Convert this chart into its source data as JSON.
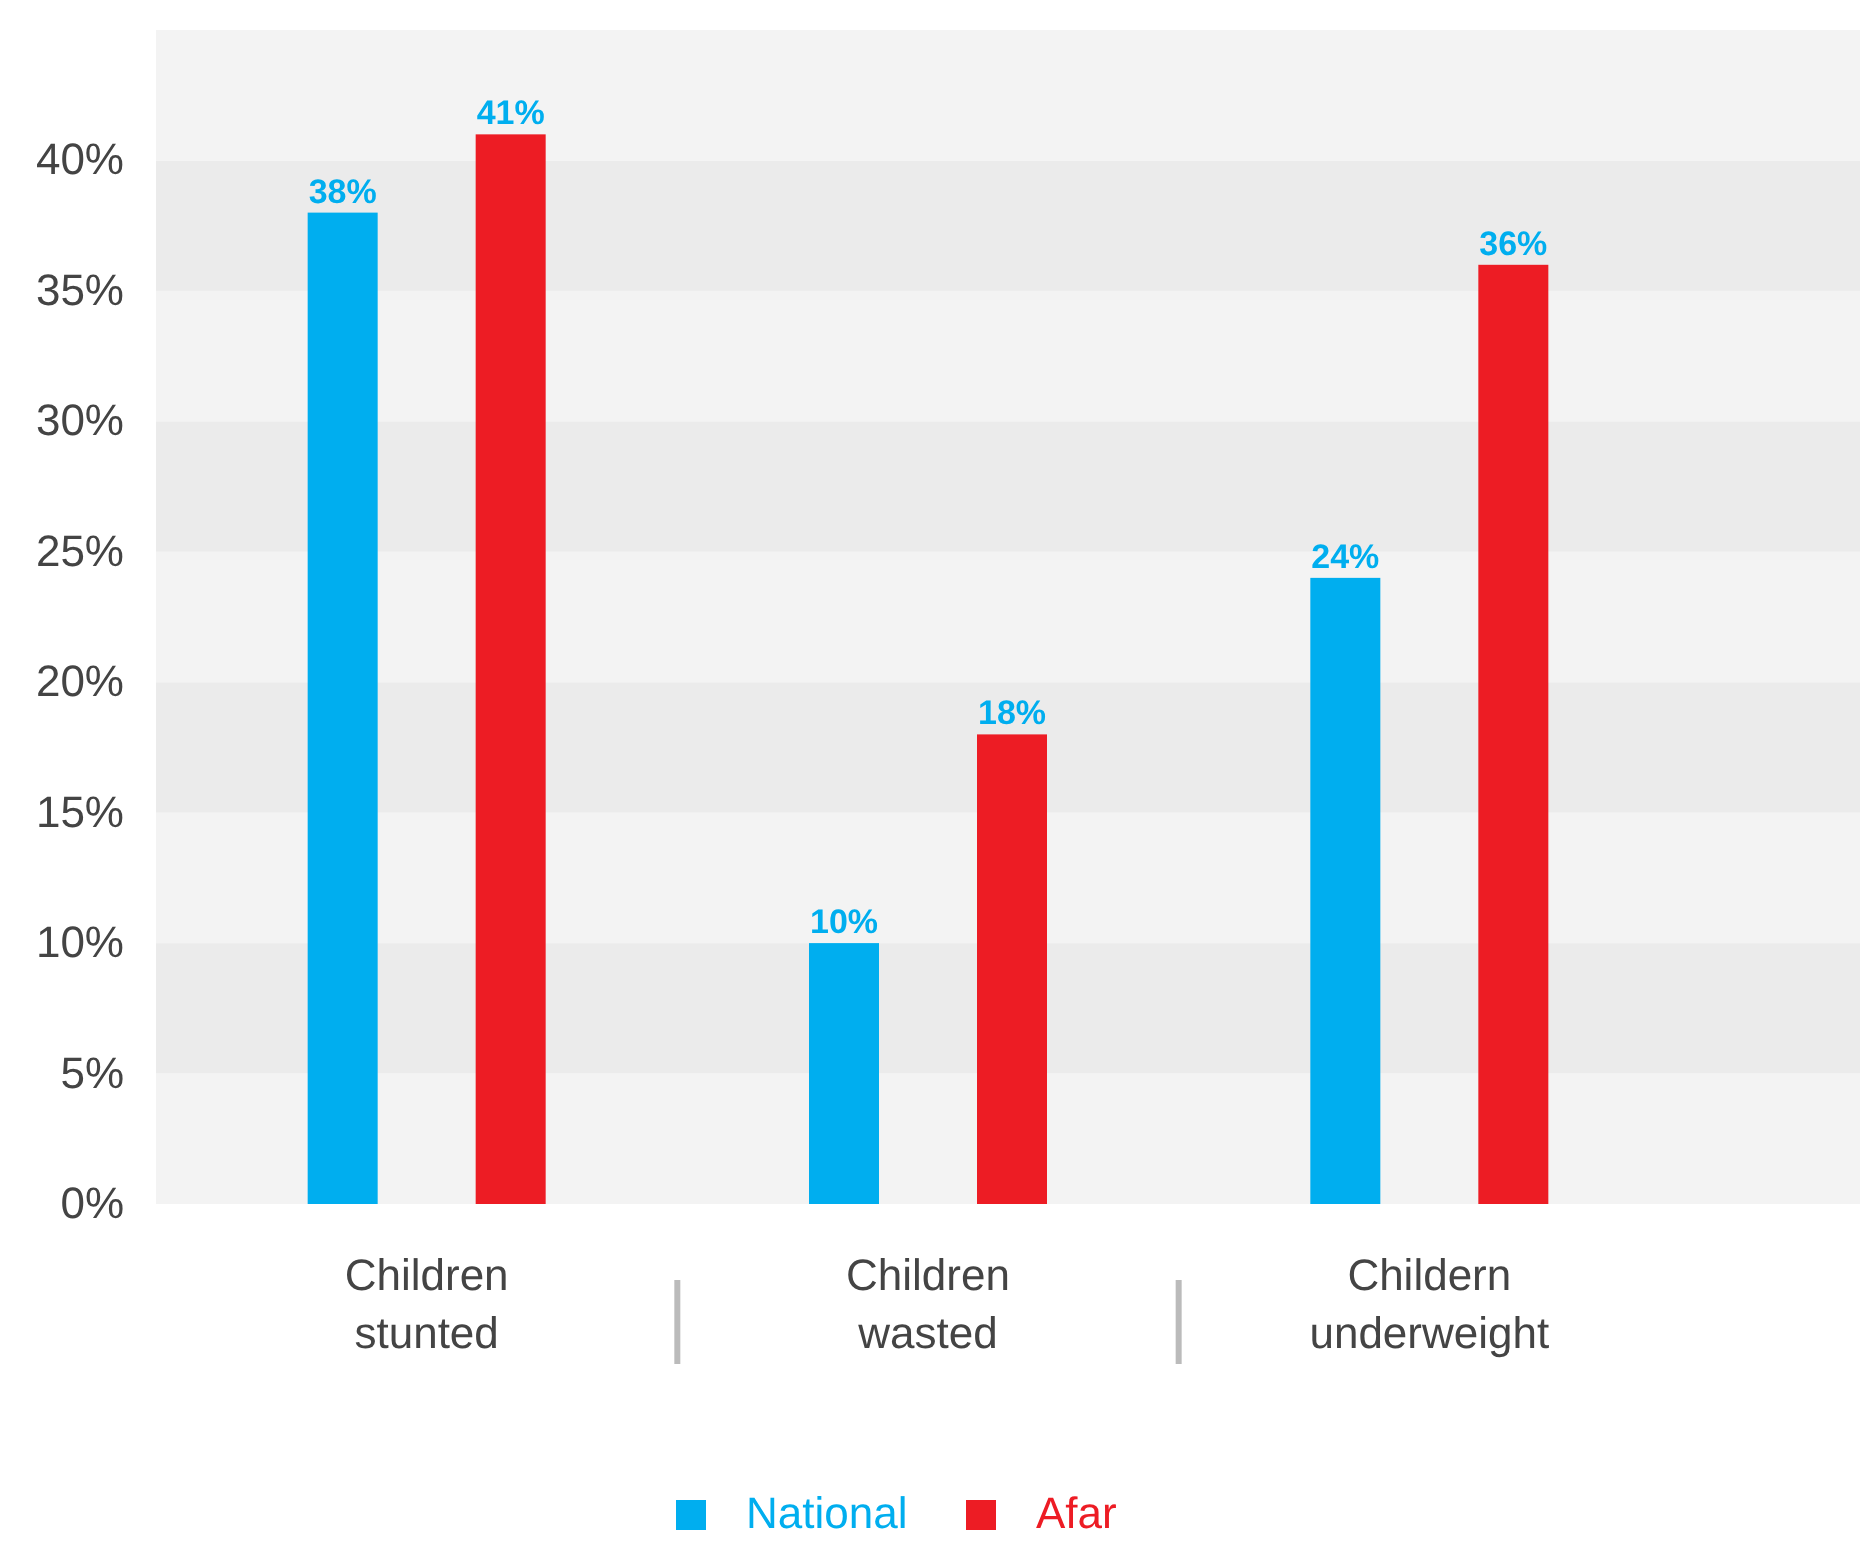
{
  "chart_data": {
    "type": "bar",
    "categories": [
      "Children\nstunted",
      "Children\nwasted",
      "Childern\nunderweight"
    ],
    "series": [
      {
        "name": "National",
        "color": "#00aeef",
        "values": [
          38,
          10,
          24
        ]
      },
      {
        "name": "Afar",
        "color": "#ed1c24",
        "values": [
          41,
          18,
          36
        ]
      }
    ],
    "ylim": [
      0,
      45
    ],
    "yticks": [
      {
        "value": 0,
        "label": "0%"
      },
      {
        "value": 5,
        "label": "5%"
      },
      {
        "value": 10,
        "label": "10%"
      },
      {
        "value": 15,
        "label": "15%"
      },
      {
        "value": 20,
        "label": "20%"
      },
      {
        "value": 25,
        "label": "25%"
      },
      {
        "value": 30,
        "label": "30%"
      },
      {
        "value": 35,
        "label": "35%"
      },
      {
        "value": 40,
        "label": "40%"
      }
    ],
    "value_labels": [
      "38%",
      "10%",
      "24%",
      "41%",
      "18%",
      "36%"
    ],
    "legend": "bottom"
  }
}
